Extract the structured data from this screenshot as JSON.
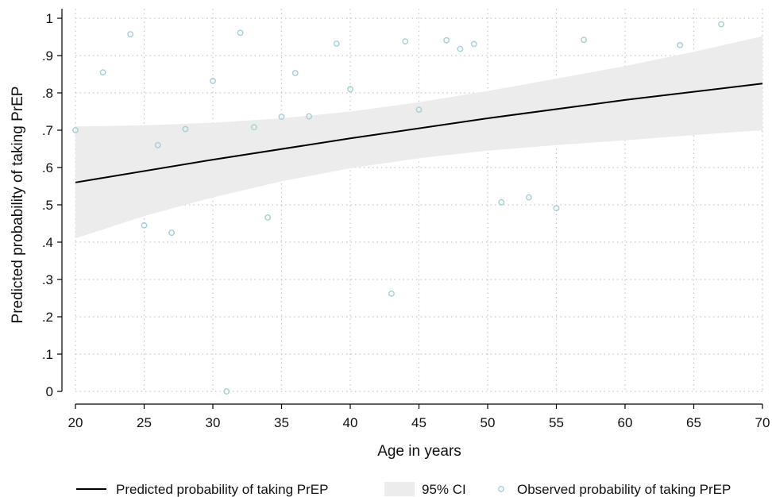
{
  "chart_data": {
    "type": "line",
    "xlabel": "Age in years",
    "ylabel": "Predicted probability of taking PrEP",
    "xlim": [
      20,
      70
    ],
    "ylim": [
      0,
      1
    ],
    "x_ticks": [
      20,
      25,
      30,
      35,
      40,
      45,
      50,
      55,
      60,
      65,
      70
    ],
    "y_ticks": [
      {
        "value": 0,
        "label": "0"
      },
      {
        "value": 0.1,
        "label": ".1"
      },
      {
        "value": 0.2,
        "label": ".2"
      },
      {
        "value": 0.3,
        "label": ".3"
      },
      {
        "value": 0.4,
        "label": ".4"
      },
      {
        "value": 0.5,
        "label": ".5"
      },
      {
        "value": 0.6,
        "label": ".6"
      },
      {
        "value": 0.7,
        "label": ".7"
      },
      {
        "value": 0.8,
        "label": ".8"
      },
      {
        "value": 0.9,
        "label": ".9"
      },
      {
        "value": 1,
        "label": "1"
      }
    ],
    "grid": true,
    "legend_position": "bottom",
    "series": [
      {
        "name": "Predicted probability of taking PrEP",
        "kind": "line",
        "color": "#000000",
        "points": [
          [
            20,
            0.56
          ],
          [
            30,
            0.621
          ],
          [
            40,
            0.678
          ],
          [
            50,
            0.732
          ],
          [
            60,
            0.781
          ],
          [
            70,
            0.825
          ]
        ]
      },
      {
        "name": "95% CI",
        "kind": "band",
        "color": "#ececec",
        "x": [
          20,
          25,
          30,
          35,
          40,
          45,
          50,
          55,
          60,
          65,
          70
        ],
        "lower": [
          0.41,
          0.47,
          0.52,
          0.563,
          0.598,
          0.625,
          0.645,
          0.66,
          0.673,
          0.687,
          0.7
        ],
        "upper": [
          0.71,
          0.713,
          0.72,
          0.732,
          0.75,
          0.775,
          0.805,
          0.838,
          0.872,
          0.91,
          0.952
        ]
      },
      {
        "name": "Observed probability of taking PrEP",
        "kind": "scatter",
        "color": "#a7d3d6",
        "points": [
          [
            20,
            0.7
          ],
          [
            22,
            0.855
          ],
          [
            24,
            0.957
          ],
          [
            25,
            0.445
          ],
          [
            26,
            0.66
          ],
          [
            27,
            0.425
          ],
          [
            28,
            0.703
          ],
          [
            30,
            0.832
          ],
          [
            31,
            0.0
          ],
          [
            32,
            0.961
          ],
          [
            33,
            0.708
          ],
          [
            34,
            0.466
          ],
          [
            35,
            0.736
          ],
          [
            36,
            0.853
          ],
          [
            37,
            0.737
          ],
          [
            39,
            0.932
          ],
          [
            40,
            0.81
          ],
          [
            43,
            0.262
          ],
          [
            44,
            0.938
          ],
          [
            45,
            0.755
          ],
          [
            47,
            0.941
          ],
          [
            48,
            0.918
          ],
          [
            49,
            0.931
          ],
          [
            51,
            0.507
          ],
          [
            53,
            0.52
          ],
          [
            55,
            0.491
          ],
          [
            57,
            0.942
          ],
          [
            64,
            0.928
          ],
          [
            67,
            0.984
          ]
        ]
      }
    ]
  }
}
